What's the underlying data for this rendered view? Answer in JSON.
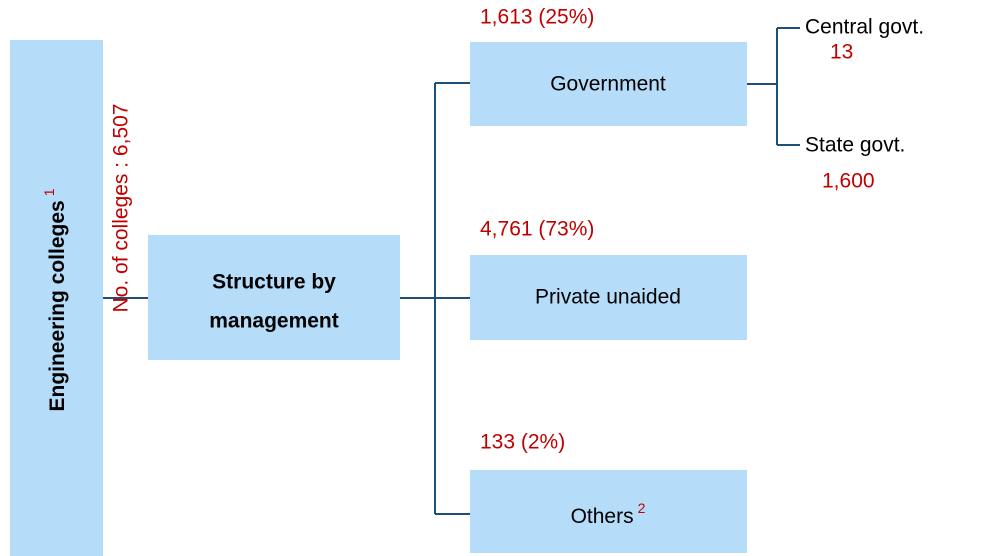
{
  "root": {
    "label": "Engineering colleges",
    "note": "1",
    "count_label": "No. of colleges : 6,507"
  },
  "center": {
    "label_line1": "Structure by",
    "label_line2": "management"
  },
  "branches": [
    {
      "label": "Government",
      "value_label": "1,613 (25%)",
      "children": [
        {
          "label": "Central govt.",
          "value_label": "13"
        },
        {
          "label": "State govt.",
          "value_label": "1,600"
        }
      ]
    },
    {
      "label": "Private unaided",
      "value_label": "4,761 (73%)"
    },
    {
      "label": "Others",
      "note": "2",
      "value_label": "133 (2%)"
    }
  ]
}
